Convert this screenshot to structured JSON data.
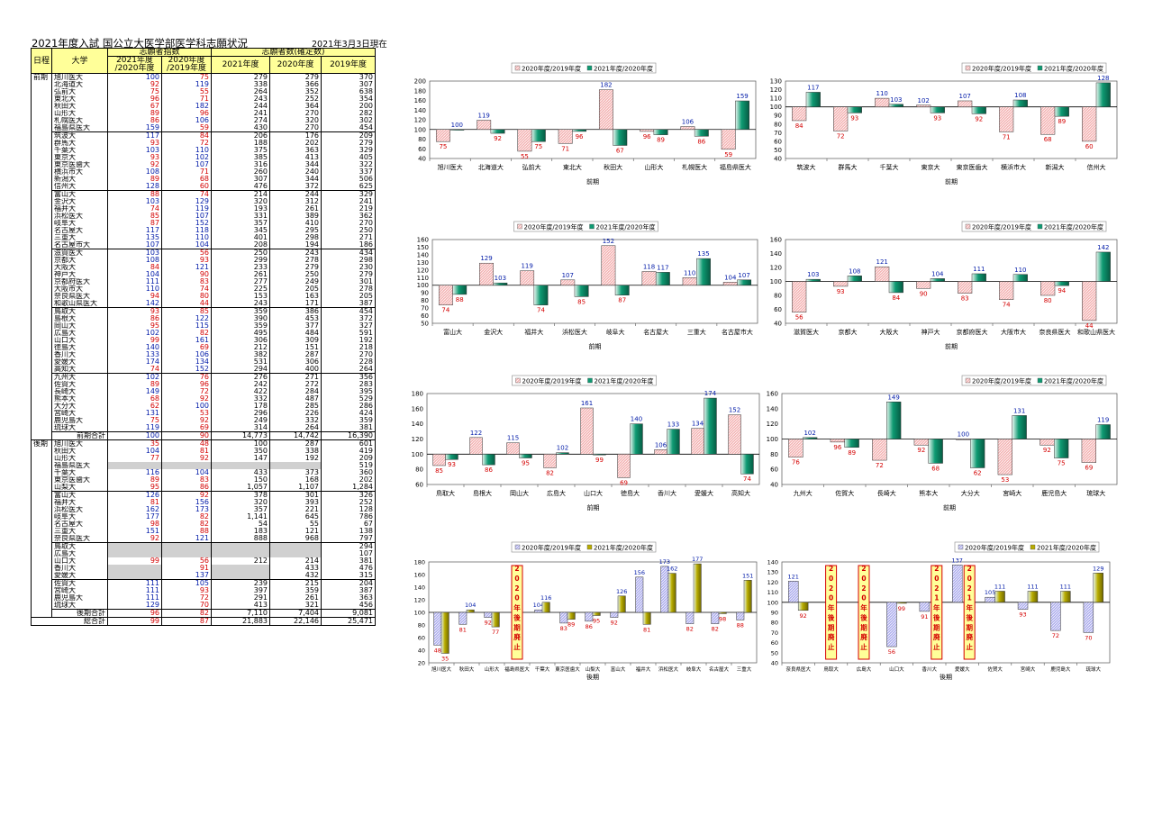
{
  "title": "2021年度入試 国公立大医学部医学科志願状況",
  "as_of": "2021年3月3日現在",
  "table": {
    "headers": {
      "schedule": "日程",
      "university": "大学",
      "index_group": "志願者指数",
      "index_2021": "2021年度\n/2020年度",
      "index_2020": "2020年度\n/2019年度",
      "count_group": "志願者数(確定数)",
      "c2021": "2021年度",
      "c2020": "2020年度",
      "c2019": "2019年度"
    },
    "early_label": "前期",
    "late_label": "後期",
    "early_rows": [
      [
        "旭川医大",
        "100",
        "75",
        "279",
        "279",
        "370"
      ],
      [
        "北海道大",
        "92",
        "119",
        "338",
        "366",
        "307"
      ],
      [
        "弘前大",
        "75",
        "55",
        "264",
        "352",
        "638"
      ],
      [
        "東北大",
        "96",
        "71",
        "243",
        "252",
        "354"
      ],
      [
        "秋田大",
        "67",
        "182",
        "244",
        "364",
        "200"
      ],
      [
        "山形大",
        "89",
        "96",
        "241",
        "270",
        "282"
      ],
      [
        "札幌医大",
        "86",
        "106",
        "274",
        "320",
        "302"
      ],
      [
        "福島県医大",
        "159",
        "59",
        "430",
        "270",
        "454"
      ],
      [
        "筑波大",
        "117",
        "84",
        "206",
        "176",
        "209"
      ],
      [
        "群馬大",
        "93",
        "72",
        "188",
        "202",
        "279"
      ],
      [
        "千葉大",
        "103",
        "110",
        "375",
        "363",
        "329"
      ],
      [
        "東京大",
        "93",
        "102",
        "385",
        "413",
        "405"
      ],
      [
        "東京医歯大",
        "92",
        "107",
        "316",
        "344",
        "322"
      ],
      [
        "横浜市大",
        "108",
        "71",
        "260",
        "240",
        "337"
      ],
      [
        "新潟大",
        "89",
        "68",
        "307",
        "344",
        "506"
      ],
      [
        "信州大",
        "128",
        "60",
        "476",
        "372",
        "625"
      ],
      [
        "富山大",
        "88",
        "74",
        "214",
        "244",
        "329"
      ],
      [
        "金沢大",
        "103",
        "129",
        "320",
        "312",
        "241"
      ],
      [
        "福井大",
        "74",
        "119",
        "193",
        "261",
        "219"
      ],
      [
        "浜松医大",
        "85",
        "107",
        "331",
        "389",
        "362"
      ],
      [
        "岐阜大",
        "87",
        "152",
        "357",
        "410",
        "270"
      ],
      [
        "名古屋大",
        "117",
        "118",
        "345",
        "295",
        "250"
      ],
      [
        "三重大",
        "135",
        "110",
        "401",
        "298",
        "271"
      ],
      [
        "名古屋市大",
        "107",
        "104",
        "208",
        "194",
        "186"
      ],
      [
        "滋賀医大",
        "103",
        "56",
        "250",
        "243",
        "434"
      ],
      [
        "京都大",
        "108",
        "93",
        "299",
        "278",
        "298"
      ],
      [
        "大阪大",
        "84",
        "121",
        "233",
        "279",
        "230"
      ],
      [
        "神戸大",
        "104",
        "90",
        "261",
        "250",
        "279"
      ],
      [
        "京都府医大",
        "111",
        "83",
        "277",
        "249",
        "301"
      ],
      [
        "大阪市大",
        "110",
        "74",
        "225",
        "205",
        "278"
      ],
      [
        "奈良県医大",
        "94",
        "80",
        "153",
        "163",
        "205"
      ],
      [
        "和歌山県医大",
        "142",
        "44",
        "243",
        "171",
        "387"
      ],
      [
        "鳥取大",
        "93",
        "85",
        "359",
        "386",
        "454"
      ],
      [
        "島根大",
        "86",
        "122",
        "390",
        "453",
        "372"
      ],
      [
        "岡山大",
        "95",
        "115",
        "359",
        "377",
        "327"
      ],
      [
        "広島大",
        "102",
        "82",
        "495",
        "484",
        "591"
      ],
      [
        "山口大",
        "99",
        "161",
        "306",
        "309",
        "192"
      ],
      [
        "徳島大",
        "140",
        "69",
        "212",
        "151",
        "218"
      ],
      [
        "香川大",
        "133",
        "106",
        "382",
        "287",
        "270"
      ],
      [
        "愛媛大",
        "174",
        "134",
        "531",
        "306",
        "228"
      ],
      [
        "高知大",
        "74",
        "152",
        "294",
        "400",
        "264"
      ],
      [
        "九州大",
        "102",
        "76",
        "276",
        "271",
        "356"
      ],
      [
        "佐賀大",
        "89",
        "96",
        "242",
        "272",
        "283"
      ],
      [
        "長崎大",
        "149",
        "72",
        "422",
        "284",
        "395"
      ],
      [
        "熊本大",
        "68",
        "92",
        "332",
        "487",
        "529"
      ],
      [
        "大分大",
        "62",
        "100",
        "178",
        "285",
        "286"
      ],
      [
        "宮崎大",
        "131",
        "53",
        "296",
        "226",
        "424"
      ],
      [
        "鹿児島大",
        "75",
        "92",
        "249",
        "332",
        "359"
      ],
      [
        "琉球大",
        "119",
        "69",
        "314",
        "264",
        "381"
      ]
    ],
    "early_total": [
      "前期合計",
      "100",
      "90",
      "14,773",
      "14,742",
      "16,390"
    ],
    "late_rows": [
      [
        "旭川医大",
        "35",
        "48",
        "100",
        "287",
        "601"
      ],
      [
        "秋田大",
        "104",
        "81",
        "350",
        "338",
        "419"
      ],
      [
        "山形大",
        "77",
        "92",
        "147",
        "192",
        "209"
      ],
      [
        "福島県医大",
        "",
        "",
        "",
        "",
        "519"
      ],
      [
        "千葉大",
        "116",
        "104",
        "433",
        "373",
        "360"
      ],
      [
        "東京医歯大",
        "89",
        "83",
        "150",
        "168",
        "202"
      ],
      [
        "山梨大",
        "95",
        "86",
        "1,057",
        "1,107",
        "1,284"
      ],
      [
        "富山大",
        "126",
        "92",
        "378",
        "301",
        "326"
      ],
      [
        "福井大",
        "81",
        "156",
        "320",
        "393",
        "252"
      ],
      [
        "浜松医大",
        "162",
        "173",
        "357",
        "221",
        "128"
      ],
      [
        "岐阜大",
        "177",
        "82",
        "1,141",
        "645",
        "786"
      ],
      [
        "名古屋大",
        "98",
        "82",
        "54",
        "55",
        "67"
      ],
      [
        "三重大",
        "151",
        "88",
        "183",
        "121",
        "138"
      ],
      [
        "奈良県医大",
        "92",
        "121",
        "888",
        "968",
        "797"
      ],
      [
        "鳥取大",
        "",
        "",
        "",
        "",
        "294"
      ],
      [
        "広島大",
        "",
        "",
        "",
        "",
        "107"
      ],
      [
        "山口大",
        "99",
        "56",
        "212",
        "214",
        "381"
      ],
      [
        "香川大",
        "",
        "91",
        "",
        "433",
        "476"
      ],
      [
        "愛媛大",
        "",
        "137",
        "",
        "432",
        "315"
      ],
      [
        "佐賀大",
        "111",
        "105",
        "239",
        "215",
        "204"
      ],
      [
        "宮崎大",
        "111",
        "93",
        "397",
        "359",
        "387"
      ],
      [
        "鹿児島大",
        "111",
        "72",
        "291",
        "261",
        "363"
      ],
      [
        "琉球大",
        "129",
        "70",
        "413",
        "321",
        "456"
      ]
    ],
    "late_total": [
      "後期合計",
      "96",
      "82",
      "7,110",
      "7,404",
      "9,081"
    ],
    "grand_total": [
      "総合計",
      "99",
      "87",
      "21,883",
      "22,146",
      "25,471"
    ]
  },
  "legend": {
    "s1": "2020年度/2019年度",
    "s2": "2021年度/2020年度"
  },
  "colors": {
    "red": "#d40000",
    "blue": "#001aa8",
    "pink": "#f4b6b6",
    "teal": "#0e9a72",
    "lavender": "#b0b0ee",
    "olive": "#b8ac00"
  },
  "stop_text": "2020年後期廃止",
  "stop_text_2021": "2021年後期廃止",
  "chart_data": [
    {
      "type": "bar",
      "xlabel": "前期",
      "ylim": [
        40,
        200
      ],
      "yticks": [
        40,
        60,
        80,
        100,
        120,
        140,
        160,
        180,
        200
      ],
      "baseline": 100,
      "categories": [
        "旭川医大",
        "北海道大",
        "弘前大",
        "東北大",
        "秋田大",
        "山形大",
        "札幌医大",
        "福島県医大"
      ],
      "series": [
        {
          "name": "2020年度/2019年度",
          "values": [
            75,
            119,
            55,
            71,
            182,
            96,
            106,
            59
          ]
        },
        {
          "name": "2021年度/2020年度",
          "values": [
            100,
            92,
            75,
            96,
            67,
            89,
            86,
            159
          ]
        }
      ]
    },
    {
      "type": "bar",
      "xlabel": "前期",
      "ylim": [
        40,
        130
      ],
      "yticks": [
        40,
        50,
        60,
        70,
        80,
        90,
        100,
        110,
        120,
        130
      ],
      "baseline": 100,
      "categories": [
        "筑波大",
        "群馬大",
        "千葉大",
        "東京大",
        "東京医歯大",
        "横浜市大",
        "新潟大",
        "信州大"
      ],
      "series": [
        {
          "name": "2020年度/2019年度",
          "values": [
            84,
            72,
            110,
            102,
            107,
            71,
            68,
            60
          ]
        },
        {
          "name": "2021年度/2020年度",
          "values": [
            117,
            93,
            103,
            93,
            92,
            108,
            89,
            128
          ]
        }
      ]
    },
    {
      "type": "bar",
      "xlabel": "前期",
      "ylim": [
        50,
        160
      ],
      "yticks": [
        50,
        60,
        70,
        80,
        90,
        100,
        110,
        120,
        130,
        140,
        150,
        160
      ],
      "baseline": 100,
      "categories": [
        "富山大",
        "金沢大",
        "福井大",
        "浜松医大",
        "岐阜大",
        "名古屋大",
        "三重大",
        "名古屋市大"
      ],
      "series": [
        {
          "name": "2020年度/2019年度",
          "values": [
            74,
            129,
            119,
            107,
            152,
            118,
            110,
            104
          ]
        },
        {
          "name": "2021年度/2020年度",
          "values": [
            88,
            103,
            74,
            85,
            87,
            117,
            135,
            107
          ]
        }
      ]
    },
    {
      "type": "bar",
      "xlabel": "前期",
      "ylim": [
        40,
        160
      ],
      "yticks": [
        40,
        60,
        80,
        100,
        120,
        140,
        160
      ],
      "baseline": 100,
      "categories": [
        "滋賀医大",
        "京都大",
        "大阪大",
        "神戸大",
        "京都府医大",
        "大阪市大",
        "奈良県医大",
        "和歌山県医大"
      ],
      "series": [
        {
          "name": "2020年度/2019年度",
          "values": [
            56,
            93,
            121,
            90,
            83,
            74,
            80,
            44
          ]
        },
        {
          "name": "2021年度/2020年度",
          "values": [
            103,
            108,
            84,
            104,
            111,
            110,
            94,
            142
          ]
        }
      ]
    },
    {
      "type": "bar",
      "xlabel": "前期",
      "ylim": [
        60,
        180
      ],
      "yticks": [
        60,
        80,
        100,
        120,
        140,
        160,
        180
      ],
      "baseline": 100,
      "categories": [
        "鳥取大",
        "島根大",
        "岡山大",
        "広島大",
        "山口大",
        "徳島大",
        "香川大",
        "愛媛大",
        "高知大"
      ],
      "series": [
        {
          "name": "2020年度/2019年度",
          "values": [
            85,
            122,
            115,
            82,
            161,
            69,
            106,
            134,
            152
          ]
        },
        {
          "name": "2021年度/2020年度",
          "values": [
            93,
            86,
            95,
            102,
            99,
            140,
            133,
            174,
            74
          ]
        }
      ]
    },
    {
      "type": "bar",
      "xlabel": "前期",
      "ylim": [
        40,
        160
      ],
      "yticks": [
        40,
        60,
        80,
        100,
        120,
        140,
        160
      ],
      "baseline": 100,
      "categories": [
        "九州大",
        "佐賀大",
        "長崎大",
        "熊本大",
        "大分大",
        "宮崎大",
        "鹿児島大",
        "琉球大"
      ],
      "series": [
        {
          "name": "2020年度/2019年度",
          "values": [
            76,
            96,
            72,
            92,
            100,
            53,
            92,
            69
          ]
        },
        {
          "name": "2021年度/2020年度",
          "values": [
            102,
            89,
            149,
            68,
            62,
            131,
            75,
            119
          ]
        }
      ]
    },
    {
      "type": "bar",
      "xlabel": "後期",
      "ylim": [
        20,
        180
      ],
      "yticks": [
        20,
        40,
        60,
        80,
        100,
        120,
        140,
        160,
        180
      ],
      "baseline": 100,
      "categories": [
        "旭川医大",
        "秋田大",
        "山形大",
        "福島県医大",
        "千葉大",
        "東京医歯大",
        "山梨大",
        "富山大",
        "福井大",
        "浜松医大",
        "岐阜大",
        "名古屋大",
        "三重大"
      ],
      "series": [
        {
          "name": "2020年度/2019年度",
          "values": [
            48,
            81,
            92,
            null,
            104,
            83,
            86,
            92,
            156,
            173,
            82,
            82,
            88
          ]
        },
        {
          "name": "2021年度/2020年度",
          "values": [
            35,
            104,
            77,
            null,
            116,
            89,
            95,
            126,
            81,
            162,
            177,
            98,
            151
          ]
        }
      ]
    },
    {
      "type": "bar",
      "xlabel": "後期",
      "ylim": [
        40,
        140
      ],
      "yticks": [
        40,
        50,
        60,
        70,
        80,
        90,
        100,
        110,
        120,
        130,
        140
      ],
      "baseline": 100,
      "categories": [
        "奈良県医大",
        "鳥取大",
        "広島大",
        "山口大",
        "香川大",
        "愛媛大",
        "佐賀大",
        "宮崎大",
        "鹿児島大",
        "琉球大"
      ],
      "series": [
        {
          "name": "2020年度/2019年度",
          "values": [
            121,
            null,
            null,
            56,
            91,
            137,
            105,
            93,
            72,
            70
          ]
        },
        {
          "name": "2021年度/2020年度",
          "values": [
            92,
            null,
            null,
            99,
            null,
            null,
            111,
            111,
            111,
            129
          ]
        }
      ]
    }
  ]
}
